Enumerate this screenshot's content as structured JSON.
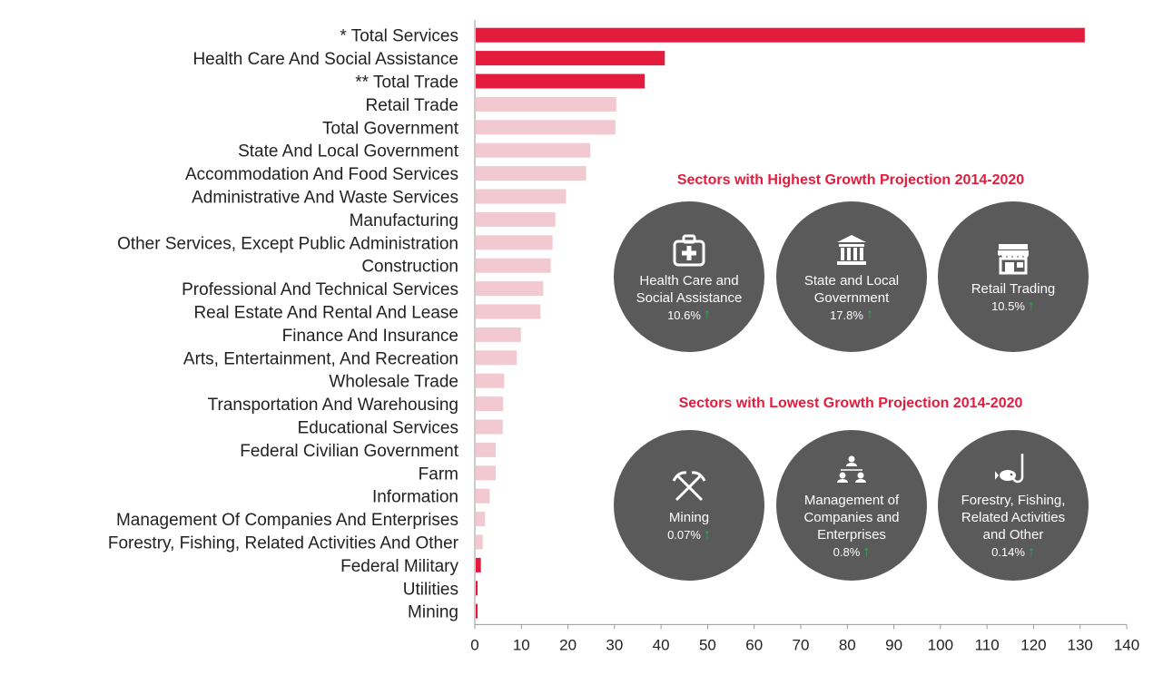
{
  "chart_data": {
    "type": "bar",
    "orientation": "horizontal",
    "categories": [
      "* Total Services",
      "Health Care And Social Assistance",
      "** Total Trade",
      "Retail Trade",
      "Total Government",
      "State And Local Government",
      "Accommodation And Food Services",
      "Administrative And Waste Services",
      "Manufacturing",
      "Other Services, Except Public Administration",
      "Construction",
      "Professional And Technical Services",
      "Real Estate And Rental And Lease",
      "Finance And Insurance",
      "Arts, Entertainment, And Recreation",
      "Wholesale Trade",
      "Transportation And Warehousing",
      "Educational Services",
      "Federal Civilian Government",
      "Farm",
      "Information",
      "Management Of Companies And Enterprises",
      "Forestry, Fishing, Related Activities And Other",
      "Federal Military",
      "Utilities",
      "Mining"
    ],
    "values": [
      131,
      40.8,
      36.5,
      30.4,
      30.2,
      24.8,
      23.9,
      19.6,
      17.3,
      16.7,
      16.3,
      14.7,
      14.1,
      9.9,
      9.0,
      6.3,
      6.1,
      6.0,
      4.5,
      4.5,
      3.2,
      2.2,
      1.7,
      1.3,
      0.6,
      0.6
    ],
    "highlighted": [
      true,
      true,
      true,
      false,
      false,
      false,
      false,
      false,
      false,
      false,
      false,
      false,
      false,
      false,
      false,
      false,
      false,
      false,
      false,
      false,
      false,
      false,
      false,
      true,
      true,
      true
    ],
    "xlim": [
      0,
      140
    ],
    "xticks": [
      0,
      10,
      20,
      30,
      40,
      50,
      60,
      70,
      80,
      90,
      100,
      110,
      120,
      130,
      140
    ],
    "colors": {
      "highlight": "#e31b3c",
      "normal": "#f2c9d0",
      "axis": "#999999"
    },
    "grid": false,
    "legend": "none"
  },
  "highest": {
    "title": "Sectors with Highest Growth Projection 2014-2020",
    "items": [
      {
        "icon": "medical-kit-icon",
        "name": "Health Care and Social Assistance",
        "pct": "10.6%"
      },
      {
        "icon": "government-building-icon",
        "name": "State and Local Government",
        "pct": "17.8%"
      },
      {
        "icon": "storefront-icon",
        "name": "Retail Trading",
        "pct": "10.5%"
      }
    ]
  },
  "lowest": {
    "title": "Sectors with Lowest Growth Projection 2014-2020",
    "items": [
      {
        "icon": "crossed-pickaxes-icon",
        "name": "Mining",
        "pct": "0.07%"
      },
      {
        "icon": "org-chart-icon",
        "name": "Management of Companies and Enterprises",
        "pct": "0.8%"
      },
      {
        "icon": "fish-hook-icon",
        "name": "Forestry, Fishing, Related Activities and Other",
        "pct": "0.14%"
      }
    ]
  }
}
